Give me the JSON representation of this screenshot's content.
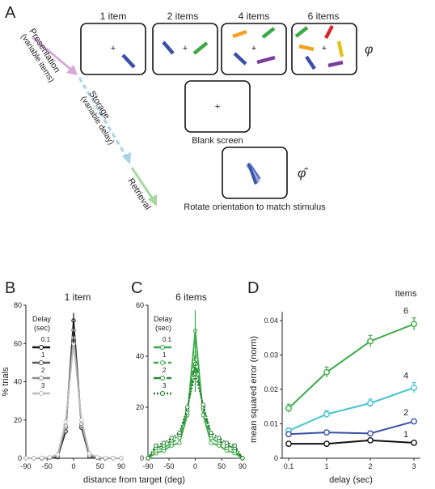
{
  "panel_labels": {
    "a": "A",
    "b": "B",
    "c": "C",
    "d": "D"
  },
  "panel_a": {
    "set_size_labels": [
      "1 item",
      "2 items",
      "4 items",
      "6 items"
    ],
    "phi_symbol": "φ",
    "phi_hat_symbol": "φ̂",
    "fixation": "+",
    "blank_caption": "Blank screen",
    "rotate_caption": "Rotate orientation to match stimulus",
    "stage_presentation": "Presentation",
    "stage_presentation_sub": "(variable items)",
    "stage_storage": "Storage",
    "stage_storage_sub": "(variable delay)",
    "stage_retrieval": "Retrieval",
    "colors": {
      "presentation_arrow": "#d8a8d8",
      "storage_arrow": "#a8d4ea",
      "retrieval_arrow": "#a8d8a0",
      "blue": "#3a4fa8",
      "green": "#3caa46",
      "orange": "#f3a321",
      "purple": "#7b3f9e",
      "red": "#d9262e",
      "yellow": "#e3c21c"
    }
  },
  "chart_data": [
    {
      "type": "line",
      "panel": "B",
      "title": "1 item",
      "xlabel": "distance from target (deg)",
      "ylabel": "% trials",
      "xlim": [
        -90,
        90
      ],
      "ylim": [
        0,
        80
      ],
      "xticks": [
        -90,
        -50,
        0,
        50,
        90
      ],
      "yticks": [
        0,
        20,
        40,
        60,
        80
      ],
      "legend_title": "Delay",
      "legend_subtitle": "(sec)",
      "x": [
        -90,
        -75,
        -60,
        -45,
        -30,
        -15,
        0,
        15,
        30,
        45,
        60,
        75,
        90
      ],
      "series": [
        {
          "name": "0.1",
          "color": "#111111",
          "values": [
            0,
            0,
            0,
            0.3,
            0.6,
            14,
            72,
            16,
            0.8,
            0.3,
            0,
            0,
            0
          ]
        },
        {
          "name": "1",
          "color": "#555555",
          "values": [
            0,
            0,
            0,
            0.3,
            1.0,
            16,
            67,
            17,
            1.0,
            0.3,
            0,
            0,
            0
          ]
        },
        {
          "name": "2",
          "color": "#8c8c8c",
          "values": [
            0,
            0,
            0.2,
            0.4,
            1.2,
            17,
            63,
            18,
            1.5,
            0.4,
            0.2,
            0,
            0
          ]
        },
        {
          "name": "3",
          "color": "#bdbdbd",
          "values": [
            0,
            0,
            0.2,
            0.5,
            2.0,
            19,
            60,
            20,
            2.5,
            0.5,
            0.2,
            0,
            0
          ]
        }
      ]
    },
    {
      "type": "line",
      "panel": "C",
      "title": "6 items",
      "title_color": "#3caa46",
      "xlabel": "",
      "ylabel": "",
      "xlim": [
        -90,
        90
      ],
      "ylim": [
        0,
        60
      ],
      "xticks": [
        -90,
        -50,
        0,
        50,
        90
      ],
      "yticks": [
        0,
        20,
        40,
        60
      ],
      "legend_title": "Delay",
      "legend_subtitle": "(sec)",
      "x": [
        -90,
        -75,
        -60,
        -45,
        -30,
        -15,
        0,
        15,
        30,
        45,
        60,
        75,
        90
      ],
      "series": [
        {
          "name": "0.1",
          "color": "#3caa46",
          "dash": "",
          "values": [
            0,
            2,
            3,
            5,
            6,
            17,
            50,
            17,
            6,
            5,
            3,
            2,
            0
          ]
        },
        {
          "name": "1",
          "color": "#3caa46",
          "dash": "6,3",
          "values": [
            0,
            3,
            4,
            6,
            8,
            18,
            41,
            19,
            8,
            6,
            4,
            3,
            0
          ]
        },
        {
          "name": "2",
          "color": "#2a8a35",
          "dash": "8,3,2,3",
          "values": [
            0,
            4,
            5,
            7,
            9,
            19,
            37,
            20,
            9,
            7,
            5,
            4,
            0
          ]
        },
        {
          "name": "3",
          "color": "#1f7a2c",
          "dash": "2,2",
          "values": [
            0,
            5,
            6,
            8,
            10,
            20,
            33,
            21,
            10,
            8,
            6,
            5,
            0
          ]
        }
      ]
    },
    {
      "type": "line",
      "panel": "D",
      "title": "",
      "xlabel": "delay (sec)",
      "ylabel": "mean squared error (norm)",
      "xticklabels": [
        "0.1",
        "1",
        "2",
        "3"
      ],
      "x": [
        0.1,
        1,
        2,
        3
      ],
      "ylim": [
        0,
        0.04
      ],
      "yticks": [
        0,
        0.01,
        0.02,
        0.03,
        0.04
      ],
      "ytick_labels": [
        "0",
        "0.01",
        "0.02",
        "0.03",
        "0.04"
      ],
      "legend_title": "Items",
      "series": [
        {
          "name": "6",
          "color": "#3caa46",
          "values": [
            0.0145,
            0.025,
            0.034,
            0.039
          ],
          "err": [
            0.0012,
            0.0015,
            0.0017,
            0.0018
          ]
        },
        {
          "name": "4",
          "color": "#45c3cf",
          "values": [
            0.008,
            0.0128,
            0.016,
            0.0205
          ],
          "err": [
            0.0008,
            0.001,
            0.0012,
            0.0015
          ]
        },
        {
          "name": "2",
          "color": "#3a4fa8",
          "values": [
            0.007,
            0.0075,
            0.0072,
            0.0107
          ],
          "err": [
            0.0005,
            0.0006,
            0.0006,
            0.0006
          ]
        },
        {
          "name": "1",
          "color": "#111111",
          "values": [
            0.0042,
            0.0042,
            0.0052,
            0.0045
          ],
          "err": [
            0.0004,
            0.0004,
            0.0004,
            0.0004
          ]
        }
      ]
    }
  ]
}
